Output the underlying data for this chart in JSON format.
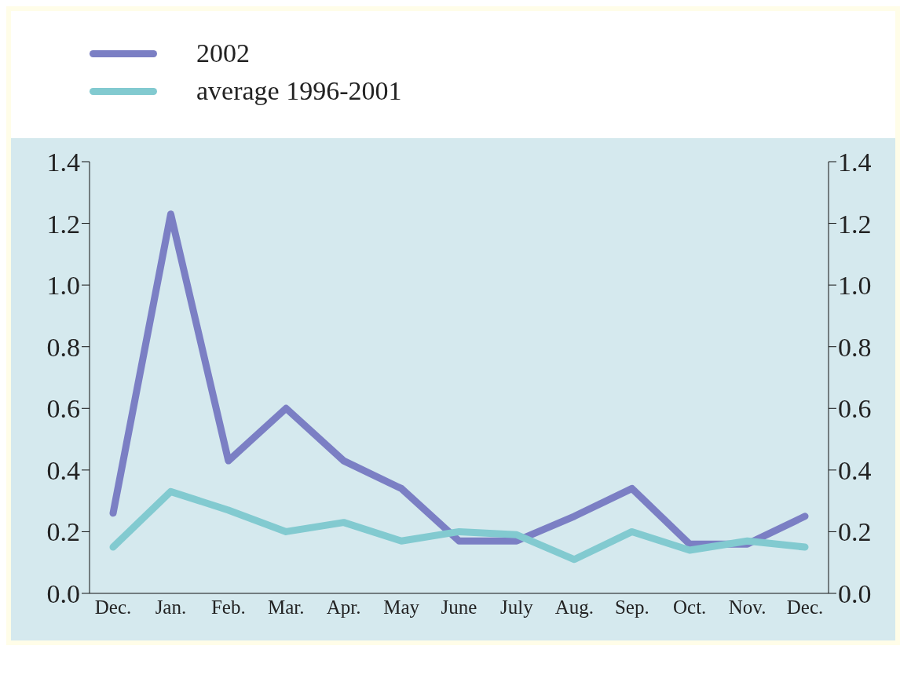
{
  "chart_data": {
    "type": "line",
    "categories": [
      "Dec.",
      "Jan.",
      "Feb.",
      "Mar.",
      "Apr.",
      "May",
      "June",
      "July",
      "Aug.",
      "Sep.",
      "Oct.",
      "Nov.",
      "Dec."
    ],
    "series": [
      {
        "name": "2002",
        "color": "#7b7fc4",
        "values": [
          0.26,
          1.23,
          0.43,
          0.6,
          0.43,
          0.34,
          0.17,
          0.17,
          0.25,
          0.34,
          0.16,
          0.16,
          0.25
        ]
      },
      {
        "name": "average 1996-2001",
        "color": "#82cad0",
        "values": [
          0.15,
          0.33,
          0.27,
          0.2,
          0.23,
          0.17,
          0.2,
          0.19,
          0.11,
          0.2,
          0.14,
          0.17,
          0.15
        ]
      }
    ],
    "ylim": [
      0,
      1.4
    ],
    "yticks": [
      {
        "value": 0,
        "label": "0.0"
      },
      0.2,
      0.4,
      0.6,
      0.8,
      {
        "value": 1,
        "label": "1.0"
      },
      1.2,
      1.4
    ],
    "y2lim": [
      0,
      1.4
    ],
    "y2ticks": [
      {
        "value": 0,
        "label": "0.0"
      },
      0.2,
      0.4,
      0.6,
      0.8,
      {
        "value": 1,
        "label": "1.0"
      },
      1.2,
      1.4
    ],
    "grid": false,
    "legend": "top left",
    "marker": "none",
    "line_style": "solid"
  }
}
